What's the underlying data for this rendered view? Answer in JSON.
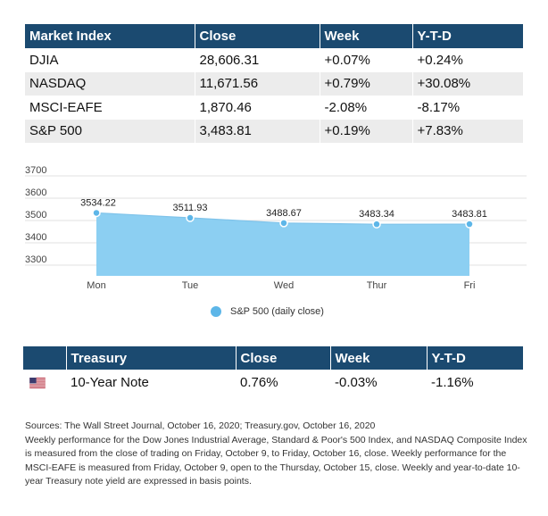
{
  "market_table": {
    "headers": [
      "Market Index",
      "Close",
      "Week",
      "Y-T-D"
    ],
    "rows": [
      [
        "DJIA",
        "28,606.31",
        "+0.07%",
        "+0.24%"
      ],
      [
        "NASDAQ",
        "11,671.56",
        "+0.79%",
        "+30.08%"
      ],
      [
        "MSCI-EAFE",
        "1,870.46",
        "-2.08%",
        "-8.17%"
      ],
      [
        "S&P 500",
        "3,483.81",
        "+0.19%",
        "+7.83%"
      ]
    ]
  },
  "chart_data": {
    "type": "area",
    "categories": [
      "Mon",
      "Tue",
      "Wed",
      "Thur",
      "Fri"
    ],
    "series": [
      {
        "name": "S&P 500 (daily close)",
        "values": [
          3534.22,
          3511.93,
          3488.67,
          3483.34,
          3483.81
        ],
        "color": "#8ccff2",
        "marker_color": "#5db6e8"
      }
    ],
    "data_labels": [
      "3534.22",
      "3511.93",
      "3488.67",
      "3483.34",
      "3483.81"
    ],
    "yticks": [
      "3700",
      "3600",
      "3500",
      "3400",
      "3300"
    ],
    "ylim": [
      3300,
      3700
    ],
    "grid": true,
    "legend_position": "bottom"
  },
  "treasury_table": {
    "headers": [
      "Treasury",
      "Close",
      "Week",
      "Y-T-D"
    ],
    "row": {
      "flag_icon": "us-flag-icon",
      "name": "10-Year Note",
      "close": "0.76%",
      "week": "-0.03%",
      "ytd": "-1.16%"
    }
  },
  "notes": [
    "Sources: The Wall Street Journal, October 16, 2020; Treasury.gov, October 16, 2020",
    "Weekly performance for the Dow Jones Industrial Average, Standard & Poor's 500 Index, and NASDAQ Composite Index is measured from the close of trading on Friday, October 9, to Friday, October 16, close. Weekly performance for the MSCI-EAFE is measured from Friday, October 9, open to the Thursday, October 15, close. Weekly and year-to-date 10-year Treasury note yield are expressed in basis points."
  ],
  "colors": {
    "header_bg": "#1b4a70",
    "row_alt": "#ececec",
    "area_fill": "#8ccff2",
    "marker": "#5db6e8"
  }
}
